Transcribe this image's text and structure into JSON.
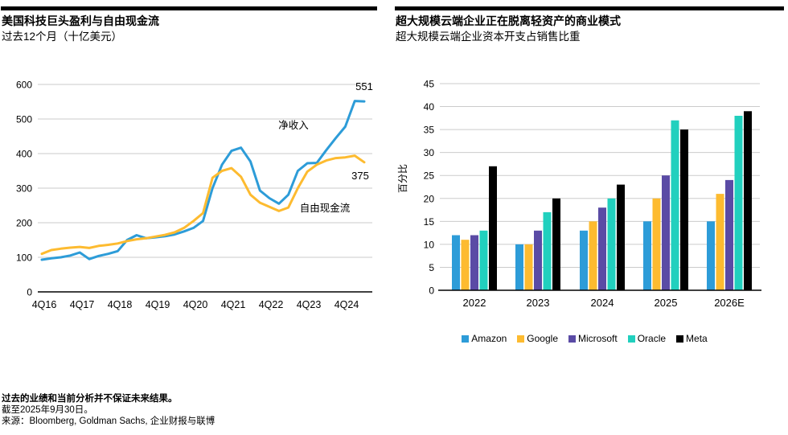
{
  "chart_data": [
    {
      "type": "line",
      "title": "美国科技巨头盈利与自由现金流",
      "subtitle": "过去12个月（十亿美元）",
      "x_tick_labels": [
        "4Q16",
        "4Q17",
        "4Q18",
        "4Q19",
        "4Q20",
        "4Q21",
        "4Q22",
        "4Q23",
        "4Q24"
      ],
      "x_frequency": "quarterly",
      "ylim": [
        0,
        600
      ],
      "yticks": [
        0,
        100,
        200,
        300,
        400,
        500,
        600
      ],
      "grid": true,
      "series": [
        {
          "name": "净收入",
          "color": "#2D9CD8",
          "end_label": "551",
          "values": [
            93,
            97,
            100,
            105,
            114,
            95,
            104,
            110,
            118,
            150,
            164,
            155,
            158,
            161,
            166,
            175,
            185,
            205,
            300,
            368,
            408,
            417,
            377,
            293,
            271,
            255,
            281,
            350,
            372,
            373,
            410,
            445,
            478,
            552,
            551
          ]
        },
        {
          "name": "自由现金流",
          "color": "#FDBB30",
          "end_label": "375",
          "values": [
            110,
            121,
            125,
            128,
            130,
            127,
            133,
            136,
            140,
            147,
            152,
            155,
            160,
            165,
            172,
            185,
            205,
            228,
            330,
            350,
            358,
            333,
            281,
            258,
            246,
            234,
            244,
            300,
            348,
            368,
            380,
            387,
            389,
            394,
            375
          ]
        }
      ]
    },
    {
      "type": "bar",
      "title": "超大规模云端企业正在脱离轻资产的商业模式",
      "subtitle": "超大规模云端企业资本开支占销售比重",
      "ylabel": "百分比",
      "categories": [
        "2022",
        "2023",
        "2024",
        "2025",
        "2026E"
      ],
      "ylim": [
        0,
        45
      ],
      "yticks": [
        0,
        5,
        10,
        15,
        20,
        25,
        30,
        35,
        40,
        45
      ],
      "grid": true,
      "legend_position": "bottom",
      "series": [
        {
          "name": "Amazon",
          "color": "#2D9CD8",
          "values": [
            12,
            10,
            13,
            15,
            15
          ]
        },
        {
          "name": "Google",
          "color": "#FDBB30",
          "values": [
            11,
            10,
            15,
            20,
            21
          ]
        },
        {
          "name": "Microsoft",
          "color": "#5A4BA5",
          "values": [
            12,
            13,
            18,
            25,
            24
          ]
        },
        {
          "name": "Oracle",
          "color": "#21D0BE",
          "values": [
            13,
            17,
            20,
            37,
            38
          ]
        },
        {
          "name": "Meta",
          "color": "#000000",
          "values": [
            27,
            20,
            23,
            35,
            39
          ]
        }
      ]
    }
  ],
  "footer": {
    "disclaimer": "过去的业绩和当前分析并不保证未来结果。",
    "as_of": "截至2025年9月30日。",
    "source": "来源：Bloomberg, Goldman Sachs, 企业财报与联博"
  }
}
